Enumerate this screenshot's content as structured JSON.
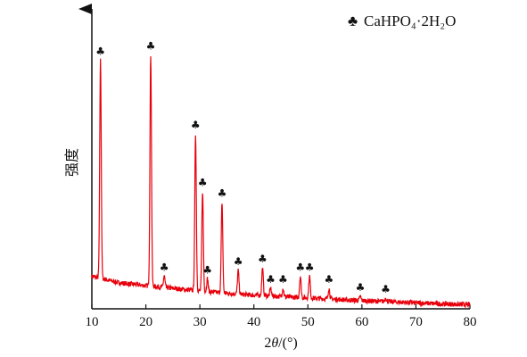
{
  "chart_data": {
    "type": "line",
    "title": "",
    "xlabel_main": "2",
    "xlabel_theta": "θ",
    "xlabel_unit": "/(°)",
    "ylabel": "强度",
    "xlim": [
      10,
      80
    ],
    "xticks": [
      10,
      20,
      30,
      40,
      50,
      60,
      70,
      80
    ],
    "legend": {
      "symbol": "♣",
      "label": "CaHPO₄·2H₂O",
      "position": "top-right"
    },
    "series_color": "#e8000b",
    "baseline": {
      "x": [
        10,
        15,
        20,
        25,
        30,
        35,
        40,
        45,
        50,
        55,
        60,
        65,
        70,
        75,
        80
      ],
      "y": [
        0.12,
        0.095,
        0.085,
        0.075,
        0.065,
        0.057,
        0.05,
        0.045,
        0.04,
        0.035,
        0.03,
        0.026,
        0.022,
        0.018,
        0.015
      ]
    },
    "peaks": [
      {
        "x": 11.6,
        "y": 0.91,
        "marked": true
      },
      {
        "x": 20.9,
        "y": 0.93,
        "marked": true
      },
      {
        "x": 23.4,
        "y": 0.12,
        "marked": true
      },
      {
        "x": 29.2,
        "y": 0.64,
        "marked": true
      },
      {
        "x": 30.5,
        "y": 0.43,
        "marked": true
      },
      {
        "x": 31.4,
        "y": 0.11,
        "marked": true
      },
      {
        "x": 34.1,
        "y": 0.39,
        "marked": true
      },
      {
        "x": 37.1,
        "y": 0.14,
        "marked": true
      },
      {
        "x": 41.6,
        "y": 0.15,
        "marked": true
      },
      {
        "x": 43.1,
        "y": 0.075,
        "marked": true
      },
      {
        "x": 45.4,
        "y": 0.075,
        "marked": true
      },
      {
        "x": 48.6,
        "y": 0.12,
        "marked": true
      },
      {
        "x": 50.3,
        "y": 0.12,
        "marked": true
      },
      {
        "x": 53.9,
        "y": 0.075,
        "marked": true
      },
      {
        "x": 59.7,
        "y": 0.045,
        "marked": true
      },
      {
        "x": 64.4,
        "y": 0.04,
        "marked": true
      }
    ]
  }
}
